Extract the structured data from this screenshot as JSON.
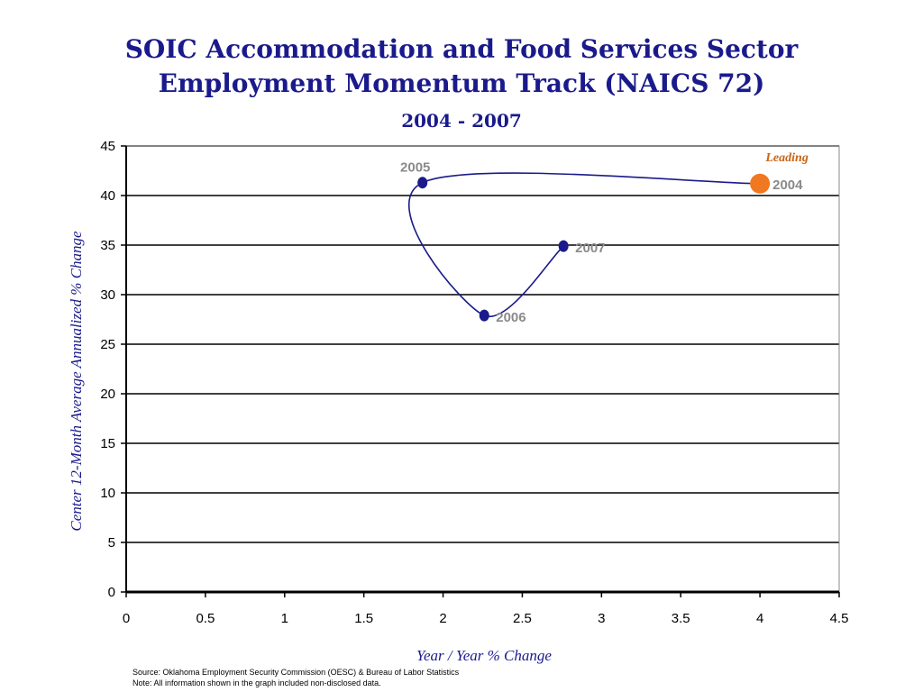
{
  "chart_data": {
    "type": "line",
    "title_line1": "SOIC Accommodation and Food Services Sector",
    "title_line2": "Employment Momentum Track (NAICS 72)",
    "subtitle": "2004 - 2007",
    "xlabel": "Year / Year % Change",
    "ylabel": "Center 12-Month Average Annualized % Change",
    "xlim": [
      0,
      4.5
    ],
    "ylim": [
      0,
      45
    ],
    "x_ticks": [
      "0",
      "0.5",
      "1",
      "1.5",
      "2",
      "2.5",
      "3",
      "3.5",
      "4",
      "4.5"
    ],
    "y_ticks": [
      "0",
      "5",
      "10",
      "15",
      "20",
      "25",
      "30",
      "35",
      "40",
      "45"
    ],
    "grid": "horizontal",
    "series": [
      {
        "points": [
          {
            "label": "2004",
            "x": 4.0,
            "y": 41.2
          },
          {
            "label": "2005",
            "x": 1.87,
            "y": 41.3
          },
          {
            "label": "2006",
            "x": 2.26,
            "y": 27.9
          },
          {
            "label": "2007",
            "x": 2.76,
            "y": 34.9
          }
        ]
      }
    ],
    "annotation": "Leading",
    "colors": {
      "line": "#1a1a8c",
      "marker": "#1a1a8c",
      "current_marker": "#f07820",
      "annotation": "#c86414",
      "point_label": "#8a8a8a"
    }
  },
  "footer": {
    "source": "Source:  Oklahoma Employment Security Commission (OESC) & Bureau of Labor Statistics",
    "note": "Note: All information shown in the graph included non-disclosed data."
  }
}
